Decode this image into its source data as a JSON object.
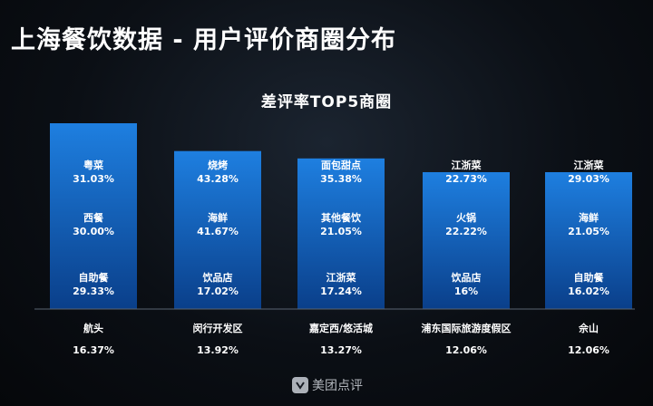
{
  "header": {
    "title": "上海餐饮数据 - 用户评价商圈分布"
  },
  "watermark": {
    "text": "美团点评",
    "icon": "meituan-dianping-logo-icon"
  },
  "colors": {
    "bar_top": "#1e7fe0",
    "bar_bottom": "#0a3f8a",
    "baseline": "#5a6472"
  },
  "chart_data": {
    "type": "bar",
    "title": "差评率TOP5商圈",
    "xlabel": "",
    "ylabel": "",
    "ylim": [
      0,
      16.37
    ],
    "grid": false,
    "categories": [
      "航头",
      "闵行开发区",
      "嘉定西/悠活城",
      "浦东国际旅游度假区",
      "佘山"
    ],
    "values": [
      16.37,
      13.92,
      13.27,
      12.06,
      12.06
    ],
    "value_labels": [
      "16.37%",
      "13.92%",
      "13.27%",
      "12.06%",
      "12.06%"
    ],
    "breakdown": [
      [
        {
          "name": "粤菜",
          "value": "31.03%"
        },
        {
          "name": "西餐",
          "value": "30.00%"
        },
        {
          "name": "自助餐",
          "value": "29.33%"
        }
      ],
      [
        {
          "name": "烧烤",
          "value": "43.28%"
        },
        {
          "name": "海鲜",
          "value": "41.67%"
        },
        {
          "name": "饮品店",
          "value": "17.02%"
        }
      ],
      [
        {
          "name": "面包甜点",
          "value": "35.38%"
        },
        {
          "name": "其他餐饮",
          "value": "21.05%"
        },
        {
          "name": "江浙菜",
          "value": "17.24%"
        }
      ],
      [
        {
          "name": "江浙菜",
          "value": "22.73%"
        },
        {
          "name": "火锅",
          "value": "22.22%"
        },
        {
          "name": "饮品店",
          "value": "16%"
        }
      ],
      [
        {
          "name": "江浙菜",
          "value": "29.03%"
        },
        {
          "name": "海鲜",
          "value": "21.05%"
        },
        {
          "name": "自助餐",
          "value": "16.02%"
        }
      ]
    ]
  }
}
